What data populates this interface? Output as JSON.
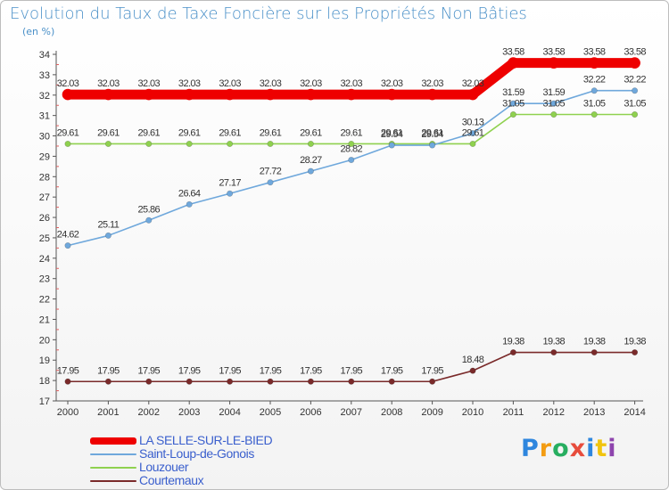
{
  "chart_data": {
    "type": "line",
    "title": "Evolution du Taux de Taxe Foncière sur les Propriétés Non Bâties",
    "ylabel": "(en %)",
    "xlabel": "",
    "categories": [
      "2000",
      "2001",
      "2002",
      "2003",
      "2004",
      "2005",
      "2006",
      "2007",
      "2008",
      "2009",
      "2010",
      "2011",
      "2012",
      "2013",
      "2014"
    ],
    "ylim": [
      17,
      34
    ],
    "yticks": [
      17,
      18,
      19,
      20,
      21,
      22,
      23,
      24,
      25,
      26,
      27,
      28,
      29,
      30,
      31,
      32,
      33,
      34
    ],
    "series": [
      {
        "name": "LA SELLE-SUR-LE-BIED",
        "color": "#ee0000",
        "values": [
          32.03,
          32.03,
          32.03,
          32.03,
          32.03,
          32.03,
          32.03,
          32.03,
          32.03,
          32.03,
          32.03,
          33.58,
          33.58,
          33.58,
          33.58
        ],
        "labels": [
          "32.03",
          "32.03",
          "32.03",
          "32.03",
          "32.03",
          "32.03",
          "32.03",
          "32.03",
          "32.03",
          "32.03",
          "32.03",
          "33.58",
          "33.58",
          "33.58",
          "33.58"
        ]
      },
      {
        "name": "Saint-Loup-de-Gonois",
        "color": "#6fa8dc",
        "values": [
          24.62,
          25.11,
          25.86,
          26.64,
          27.17,
          27.72,
          28.27,
          28.82,
          29.54,
          29.54,
          30.13,
          31.59,
          31.59,
          32.22,
          32.22
        ],
        "labels": [
          "24.62",
          "25.11",
          "25.86",
          "26.64",
          "27.17",
          "27.72",
          "28.27",
          "28.82",
          "29.54",
          "29.54",
          "30.13",
          "31.59",
          "31.59",
          "32.22",
          "32.22"
        ]
      },
      {
        "name": "Louzouer",
        "color": "#8fd14f",
        "values": [
          29.61,
          29.61,
          29.61,
          29.61,
          29.61,
          29.61,
          29.61,
          29.61,
          29.61,
          29.61,
          29.61,
          31.05,
          31.05,
          31.05,
          31.05
        ],
        "labels": [
          "29.61",
          "29.61",
          "29.61",
          "29.61",
          "29.61",
          "29.61",
          "29.61",
          "29.61",
          "29.61",
          "29.61",
          "29.61",
          "31.05",
          "31.05",
          "31.05",
          "31.05"
        ]
      },
      {
        "name": "Courtemaux",
        "color": "#7a2a2a",
        "values": [
          17.95,
          17.95,
          17.95,
          17.95,
          17.95,
          17.95,
          17.95,
          17.95,
          17.95,
          17.95,
          18.48,
          19.38,
          19.38,
          19.38,
          19.38
        ],
        "labels": [
          "17.95",
          "17.95",
          "17.95",
          "17.95",
          "17.95",
          "17.95",
          "17.95",
          "17.95",
          "17.95",
          "17.95",
          "18.48",
          "19.38",
          "19.38",
          "19.38",
          "19.38"
        ]
      }
    ],
    "legend_position": "bottom-left"
  },
  "logo": {
    "letters": [
      "P",
      "r",
      "o",
      "x",
      "i",
      "t",
      "i"
    ],
    "colors": [
      "#2e86de",
      "#f39c12",
      "#27ae60",
      "#e74c3c",
      "#2e86de",
      "#f1c40f",
      "#8e44ad"
    ]
  }
}
